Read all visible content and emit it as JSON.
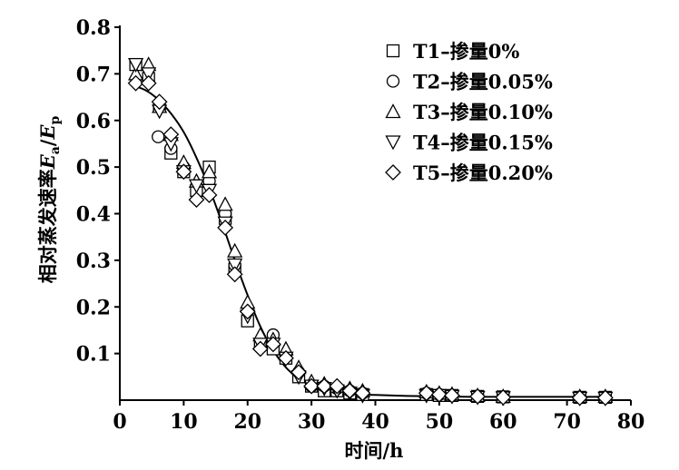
{
  "chart_data": {
    "type": "scatter",
    "xlabel": "时间/h",
    "ylabel_prefix": "相对蒸发速率",
    "ylabel_symbols": {
      "ea_base": "E",
      "ea_sub": "a",
      "slash": "/",
      "ep_base": "E",
      "ep_sub": "p"
    },
    "xlim": [
      0,
      80
    ],
    "ylim": [
      0,
      0.8
    ],
    "xticks": [
      "0",
      "10",
      "20",
      "30",
      "40",
      "50",
      "60",
      "70",
      "80"
    ],
    "yticks": [
      "0.1",
      "0.2",
      "0.3",
      "0.4",
      "0.5",
      "0.6",
      "0.7",
      "0.8"
    ],
    "grid": false,
    "legend_position": "top-right",
    "series": [
      {
        "name": "T1–掺量0%",
        "marker": "square",
        "x": [
          2.5,
          4.5,
          6.2,
          8.0,
          10.0,
          12.0,
          14.0,
          16.5,
          18.0,
          20.0,
          22.0,
          24.0,
          26.0,
          28.0,
          30.0,
          32.0,
          34.0,
          36.0,
          38.0,
          48.0,
          50.0,
          52.0,
          56.0,
          60.0,
          72.0,
          76.0
        ],
        "y": [
          0.72,
          0.69,
          0.63,
          0.53,
          0.49,
          0.45,
          0.5,
          0.39,
          0.28,
          0.17,
          0.12,
          0.11,
          0.09,
          0.05,
          0.03,
          0.02,
          0.02,
          0.015,
          0.012,
          0.012,
          0.01,
          0.01,
          0.008,
          0.007,
          0.006,
          0.006
        ]
      },
      {
        "name": "T2–掺量0.05%",
        "marker": "circle",
        "x": [
          6.0,
          8.0,
          10.0,
          14.0,
          16.5,
          18.0,
          24.0,
          28.0,
          30.0,
          32.0,
          34.0,
          36.0,
          38.0,
          48.0,
          50.0,
          52.0,
          56.0,
          60.0,
          72.0,
          76.0
        ],
        "y": [
          0.565,
          0.54,
          0.5,
          0.47,
          0.4,
          0.29,
          0.14,
          0.06,
          0.03,
          0.03,
          0.025,
          0.02,
          0.015,
          0.015,
          0.012,
          0.01,
          0.008,
          0.007,
          0.006,
          0.006
        ]
      },
      {
        "name": "T3–掺量0.10%",
        "marker": "triangle-up",
        "x": [
          2.5,
          4.5,
          6.2,
          8.0,
          10.0,
          12.0,
          14.0,
          16.5,
          18.0,
          20.0,
          22.0,
          24.0,
          26.0,
          28.0,
          30.0,
          32.0,
          34.0,
          36.0,
          38.0,
          48.0,
          50.0,
          52.0,
          56.0,
          60.0,
          72.0,
          76.0
        ],
        "y": [
          0.7,
          0.72,
          0.63,
          0.57,
          0.51,
          0.47,
          0.49,
          0.42,
          0.32,
          0.21,
          0.14,
          0.13,
          0.11,
          0.07,
          0.04,
          0.035,
          0.03,
          0.025,
          0.02,
          0.018,
          0.015,
          0.013,
          0.01,
          0.008,
          0.008,
          0.008
        ]
      },
      {
        "name": "T4–掺量0.15%",
        "marker": "triangle-down",
        "x": [
          2.5,
          4.5,
          6.2,
          8.0,
          10.0,
          12.0,
          14.0,
          16.5,
          18.0,
          20.0,
          22.0,
          24.0,
          26.0,
          28.0,
          30.0,
          32.0,
          34.0,
          36.0,
          38.0,
          48.0,
          50.0,
          52.0,
          56.0,
          60.0,
          72.0,
          76.0
        ],
        "y": [
          0.72,
          0.7,
          0.62,
          0.55,
          0.49,
          0.46,
          0.45,
          0.38,
          0.29,
          0.18,
          0.12,
          0.12,
          0.09,
          0.05,
          0.03,
          0.025,
          0.02,
          0.015,
          0.01,
          0.01,
          0.01,
          0.008,
          0.006,
          0.005,
          0.004,
          0.004
        ]
      },
      {
        "name": "T5–掺量0.20%",
        "marker": "diamond",
        "x": [
          2.5,
          4.5,
          6.2,
          8.0,
          10.0,
          12.0,
          14.0,
          16.5,
          18.0,
          20.0,
          22.0,
          24.0,
          26.0,
          28.0,
          30.0,
          32.0,
          34.0,
          36.0,
          38.0,
          48.0,
          50.0,
          52.0,
          56.0,
          60.0,
          72.0,
          76.0
        ],
        "y": [
          0.68,
          0.68,
          0.64,
          0.57,
          0.49,
          0.43,
          0.44,
          0.37,
          0.27,
          0.19,
          0.11,
          0.12,
          0.09,
          0.06,
          0.03,
          0.03,
          0.03,
          0.02,
          0.015,
          0.015,
          0.012,
          0.01,
          0.008,
          0.006,
          0.005,
          0.005
        ]
      }
    ],
    "fit_curve": {
      "x": [
        2,
        4,
        6,
        8,
        10,
        12,
        14,
        16,
        18,
        20,
        22,
        24,
        26,
        28,
        30,
        32,
        34,
        36,
        38,
        40,
        45,
        50,
        55,
        60,
        65,
        70,
        76
      ],
      "y": [
        0.675,
        0.665,
        0.645,
        0.615,
        0.575,
        0.52,
        0.455,
        0.38,
        0.3,
        0.225,
        0.158,
        0.107,
        0.07,
        0.046,
        0.031,
        0.022,
        0.017,
        0.014,
        0.012,
        0.011,
        0.009,
        0.008,
        0.007,
        0.007,
        0.007,
        0.007,
        0.007
      ]
    }
  }
}
